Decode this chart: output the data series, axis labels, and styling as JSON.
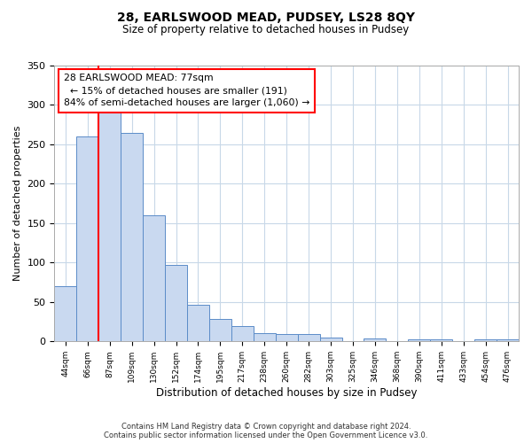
{
  "title": "28, EARLSWOOD MEAD, PUDSEY, LS28 8QY",
  "subtitle": "Size of property relative to detached houses in Pudsey",
  "xlabel": "Distribution of detached houses by size in Pudsey",
  "ylabel": "Number of detached properties",
  "footnote1": "Contains HM Land Registry data © Crown copyright and database right 2024.",
  "footnote2": "Contains public sector information licensed under the Open Government Licence v3.0.",
  "bar_labels": [
    "44sqm",
    "66sqm",
    "87sqm",
    "109sqm",
    "130sqm",
    "152sqm",
    "174sqm",
    "195sqm",
    "217sqm",
    "238sqm",
    "260sqm",
    "282sqm",
    "303sqm",
    "325sqm",
    "346sqm",
    "368sqm",
    "390sqm",
    "411sqm",
    "433sqm",
    "454sqm",
    "476sqm"
  ],
  "bar_heights": [
    70,
    260,
    291,
    265,
    160,
    97,
    47,
    28,
    19,
    10,
    9,
    9,
    5,
    0,
    4,
    0,
    3,
    3,
    0,
    3,
    3
  ],
  "bar_color": "#c9d9f0",
  "bar_edge_color": "#5b8cc8",
  "ylim": [
    0,
    350
  ],
  "yticks": [
    0,
    50,
    100,
    150,
    200,
    250,
    300,
    350
  ],
  "property_line_x": 1.5,
  "property_line_label": "28 EARLSWOOD MEAD: 77sqm",
  "annotation_line1": "← 15% of detached houses are smaller (191)",
  "annotation_line2": "84% of semi-detached houses are larger (1,060) →",
  "background_color": "#ffffff",
  "grid_color": "#c8d8e8",
  "title_fontsize": 10,
  "subtitle_fontsize": 8.5,
  "ylabel_fontsize": 8,
  "xlabel_fontsize": 8.5,
  "tick_fontsize": 8,
  "xtick_fontsize": 6.5,
  "annotation_fontsize": 7.8,
  "footnote_fontsize": 6
}
